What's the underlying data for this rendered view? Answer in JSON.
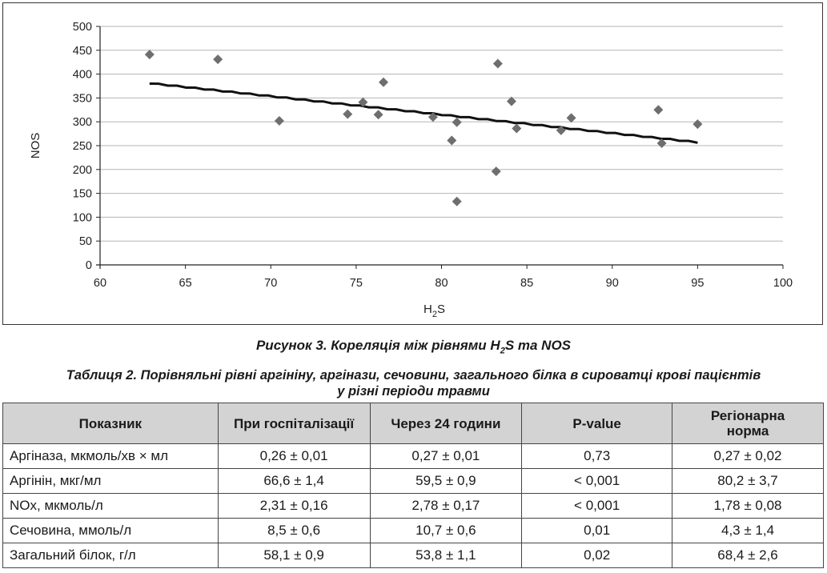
{
  "figure": {
    "caption_parts": [
      "Рисунок 3. Кореляція між рівнями H",
      "2",
      "S та NOS"
    ],
    "chart_data": {
      "type": "scatter",
      "xlabel_parts": [
        "H",
        "2",
        "S"
      ],
      "ylabel": "NOS",
      "xlim": [
        60,
        100
      ],
      "ylim": [
        0,
        500
      ],
      "x_ticks": [
        60,
        65,
        70,
        75,
        80,
        85,
        90,
        95,
        100
      ],
      "y_ticks": [
        0,
        50,
        100,
        150,
        200,
        250,
        300,
        350,
        400,
        450,
        500
      ],
      "grid": "horizontal",
      "marker_color": "#6e6e6e",
      "trendline_color": "#111111",
      "points": [
        {
          "x": 62.9,
          "y": 441
        },
        {
          "x": 66.9,
          "y": 431
        },
        {
          "x": 70.5,
          "y": 302
        },
        {
          "x": 74.5,
          "y": 316
        },
        {
          "x": 75.4,
          "y": 341
        },
        {
          "x": 76.3,
          "y": 315
        },
        {
          "x": 76.6,
          "y": 383
        },
        {
          "x": 79.5,
          "y": 310
        },
        {
          "x": 80.6,
          "y": 261
        },
        {
          "x": 80.9,
          "y": 299
        },
        {
          "x": 80.9,
          "y": 133
        },
        {
          "x": 83.2,
          "y": 196
        },
        {
          "x": 83.3,
          "y": 422
        },
        {
          "x": 84.1,
          "y": 343
        },
        {
          "x": 84.4,
          "y": 286
        },
        {
          "x": 87.0,
          "y": 282
        },
        {
          "x": 87.6,
          "y": 308
        },
        {
          "x": 92.7,
          "y": 325
        },
        {
          "x": 92.9,
          "y": 255
        },
        {
          "x": 95.0,
          "y": 295
        }
      ],
      "trendline": {
        "x": [
          62.9,
          95.0
        ],
        "y": [
          381,
          257
        ]
      }
    }
  },
  "table": {
    "caption_line1": "Таблиця 2.  Порівняльні рівні аргініну, аргінази, сечовини, загального білка в сироватці крові пацієнтів",
    "caption_line2": "у різні періоди травми",
    "headers": [
      "Показник",
      "При госпіталізації",
      "Через 24 години",
      "P-value",
      "Регіонарна норма"
    ],
    "rows": [
      [
        "Аргіназа, мкмоль/хв × мл",
        "0,26 ± 0,01",
        "0,27 ± 0,01",
        "0,73",
        "0,27 ± 0,02"
      ],
      [
        "Аргінін, мкг/мл",
        "66,6 ± 1,4",
        "59,5 ± 0,9",
        "< 0,001",
        "80,2 ± 3,7"
      ],
      [
        "NOx, мкмоль/л",
        "2,31 ± 0,16",
        "2,78 ± 0,17",
        "< 0,001",
        "1,78 ± 0,08"
      ],
      [
        "Сечовина, ммоль/л",
        "8,5 ± 0,6",
        "10,7 ± 0,6",
        "0,01",
        "4,3 ± 1,4"
      ],
      [
        "Загальний білок, г/л",
        "58,1 ± 0,9",
        "53,8 ± 1,1",
        "0,02",
        "68,4 ± 2,6"
      ]
    ]
  }
}
